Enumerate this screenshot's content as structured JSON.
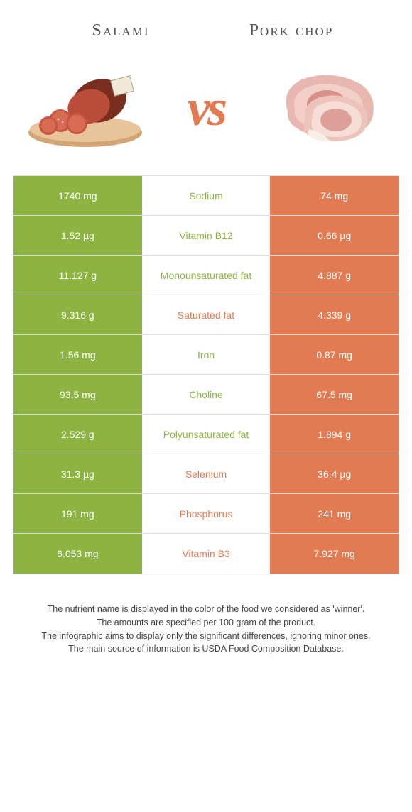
{
  "header": {
    "left_title": "Salami",
    "right_title": "Pork chop",
    "vs": "vs"
  },
  "colors": {
    "green": "#8db442",
    "orange": "#e27b52"
  },
  "table": {
    "type": "comparison-table",
    "rows": [
      {
        "left": "1740 mg",
        "nutrient": "Sodium",
        "right": "74 mg",
        "winner": "left"
      },
      {
        "left": "1.52 µg",
        "nutrient": "Vitamin B12",
        "right": "0.66 µg",
        "winner": "left"
      },
      {
        "left": "11.127 g",
        "nutrient": "Monounsaturated fat",
        "right": "4.887 g",
        "winner": "left"
      },
      {
        "left": "9.316 g",
        "nutrient": "Saturated fat",
        "right": "4.339 g",
        "winner": "right"
      },
      {
        "left": "1.56 mg",
        "nutrient": "Iron",
        "right": "0.87 mg",
        "winner": "left"
      },
      {
        "left": "93.5 mg",
        "nutrient": "Choline",
        "right": "67.5 mg",
        "winner": "left"
      },
      {
        "left": "2.529 g",
        "nutrient": "Polyunsaturated fat",
        "right": "1.894 g",
        "winner": "left"
      },
      {
        "left": "31.3 µg",
        "nutrient": "Selenium",
        "right": "36.4 µg",
        "winner": "right"
      },
      {
        "left": "191 mg",
        "nutrient": "Phosphorus",
        "right": "241 mg",
        "winner": "right"
      },
      {
        "left": "6.053 mg",
        "nutrient": "Vitamin B3",
        "right": "7.927 mg",
        "winner": "right"
      }
    ]
  },
  "footer": {
    "line1": "The nutrient name is displayed in the color of the food we considered as 'winner'.",
    "line2": "The amounts are specified per 100 gram of the product.",
    "line3": "The infographic aims to display only the significant differences, ignoring minor ones.",
    "line4": "The main source of information is USDA Food Composition Database."
  }
}
